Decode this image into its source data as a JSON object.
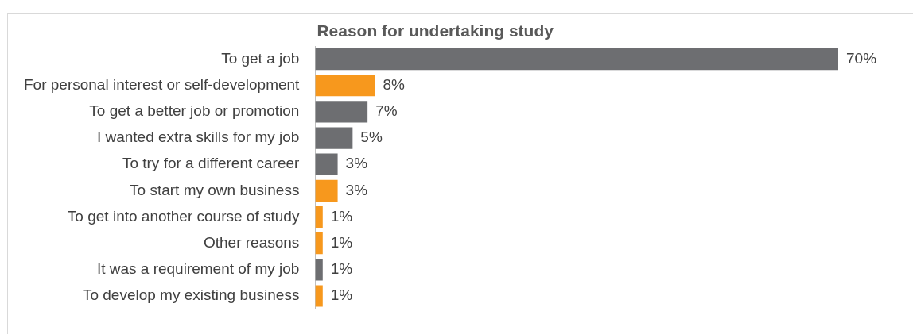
{
  "chart_data": {
    "type": "bar",
    "orientation": "horizontal",
    "title": "Reason for undertaking study",
    "categories": [
      "To get a job",
      "For personal interest or self-development",
      "To get a better job or promotion",
      "I wanted extra skills for my job",
      "To try for a different career",
      "To start my own business",
      "To get into another course of study",
      "Other reasons",
      "It was a requirement of my job",
      "To develop my existing business"
    ],
    "values": [
      70,
      8,
      7,
      5,
      3,
      3,
      1,
      1,
      1,
      1
    ],
    "value_labels": [
      "70%",
      "8%",
      "7%",
      "5%",
      "3%",
      "3%",
      "1%",
      "1%",
      "1%",
      "1%"
    ],
    "colors": [
      "#6d6e71",
      "#f7981d",
      "#6d6e71",
      "#6d6e71",
      "#6d6e71",
      "#f7981d",
      "#f7981d",
      "#f7981d",
      "#6d6e71",
      "#f7981d"
    ],
    "grid": false,
    "legend": false
  }
}
